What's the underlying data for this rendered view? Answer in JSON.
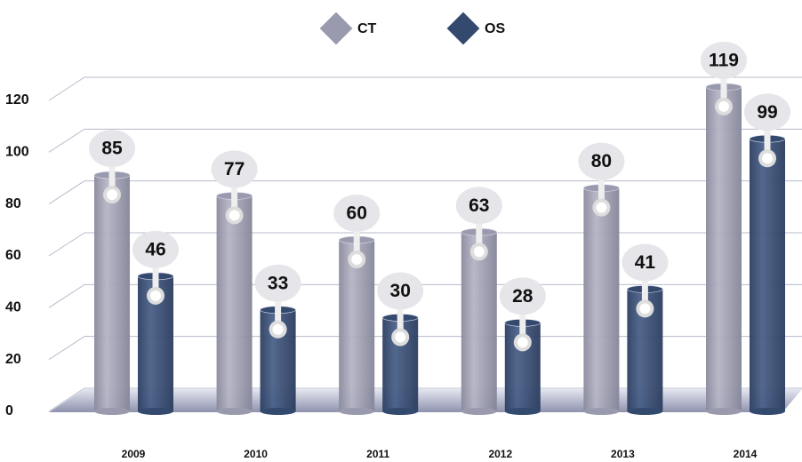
{
  "chart_data": {
    "type": "bar",
    "categories": [
      "2009",
      "2010",
      "2011",
      "2012",
      "2013",
      "2014"
    ],
    "series": [
      {
        "name": "CT",
        "color": "#9a9aae",
        "values": [
          85,
          77,
          60,
          63,
          80,
          119
        ]
      },
      {
        "name": "OS",
        "color": "#34496e",
        "values": [
          46,
          33,
          30,
          28,
          41,
          99
        ]
      }
    ],
    "ylim": [
      0,
      120
    ],
    "yticks": [
      0,
      20,
      40,
      60,
      80,
      100,
      120
    ],
    "grid": true,
    "legend": "top"
  }
}
